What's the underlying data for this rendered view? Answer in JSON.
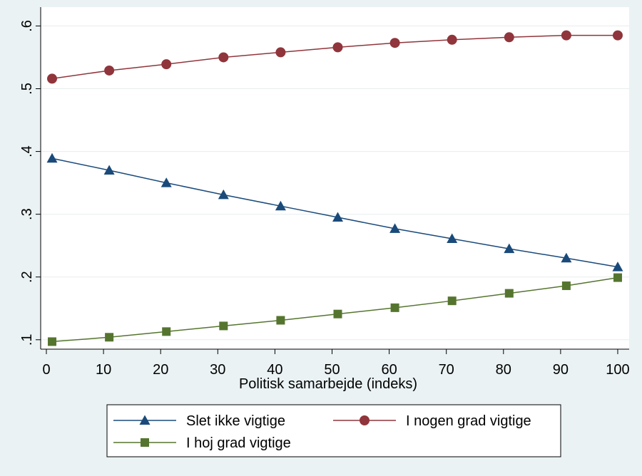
{
  "chart_data": {
    "type": "line",
    "title": "",
    "xlabel": "Politisk samarbejde (indeks)",
    "ylabel": "",
    "xlim": [
      -1,
      102
    ],
    "ylim": [
      0.085,
      0.63
    ],
    "x_ticks": [
      0,
      10,
      20,
      30,
      40,
      50,
      60,
      70,
      80,
      90,
      100
    ],
    "x_tick_labels": [
      "0",
      "10",
      "20",
      "30",
      "40",
      "50",
      "60",
      "70",
      "80",
      "90",
      "100"
    ],
    "y_ticks": [
      0.1,
      0.2,
      0.3,
      0.4,
      0.5,
      0.6
    ],
    "y_tick_labels": [
      ".1",
      ".2",
      ".3",
      ".4",
      ".5",
      ".6"
    ],
    "grid": "horizontal",
    "legend_placement": "bottom",
    "x": [
      1,
      11,
      21,
      31,
      41,
      51,
      61,
      71,
      81,
      91,
      100
    ],
    "series": [
      {
        "name": "Slet ikke vigtige",
        "marker": "triangle",
        "color": "#1a4a7a",
        "values": [
          0.389,
          0.37,
          0.35,
          0.331,
          0.313,
          0.295,
          0.277,
          0.261,
          0.245,
          0.23,
          0.216
        ]
      },
      {
        "name": "I nogen grad vigtige",
        "marker": "circle",
        "color": "#90353b",
        "values": [
          0.516,
          0.529,
          0.539,
          0.55,
          0.558,
          0.566,
          0.573,
          0.578,
          0.582,
          0.585,
          0.585
        ]
      },
      {
        "name": "I hoj grad vigtige",
        "marker": "square",
        "color": "#55752f",
        "values": [
          0.097,
          0.104,
          0.113,
          0.122,
          0.131,
          0.141,
          0.151,
          0.162,
          0.174,
          0.186,
          0.199
        ]
      }
    ]
  }
}
